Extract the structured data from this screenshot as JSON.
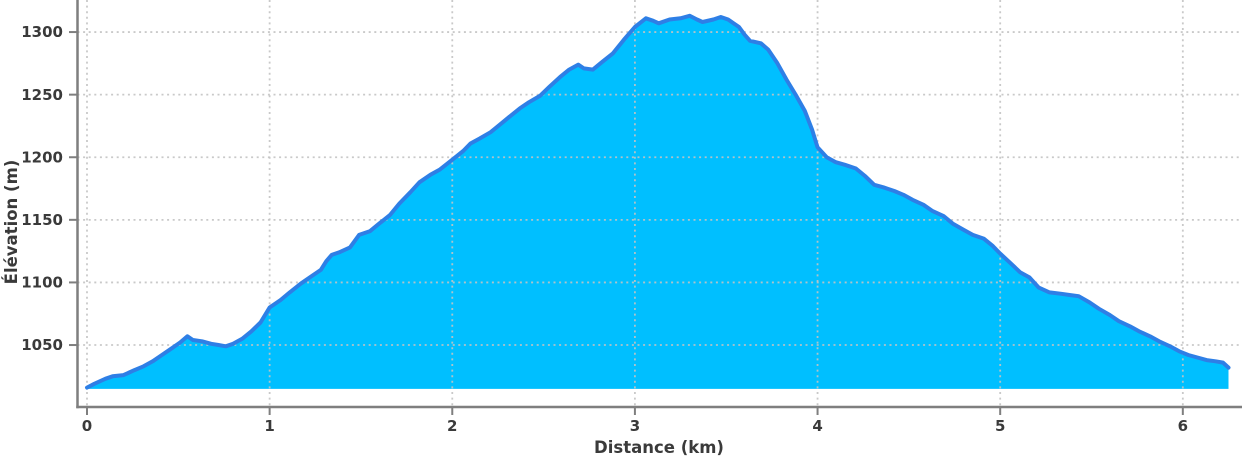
{
  "chart_data": {
    "type": "area",
    "title": "",
    "xlabel": "Distance (km)",
    "ylabel": "Élévation (m)",
    "xlim": [
      -0.052,
      6.324
    ],
    "ylim": [
      1000.5,
      1325.6
    ],
    "xticks": [
      0,
      1,
      2,
      3,
      4,
      5,
      6
    ],
    "yticks": [
      1050,
      1100,
      1150,
      1200,
      1250,
      1300
    ],
    "grid": "dotted-both-axes",
    "legend": "none",
    "fill_base_elevation": 1015,
    "colors": {
      "fill": "#00BFFF",
      "line": "#2E7FE6",
      "grid": "#c4c4c4",
      "spine": "#7f7f7f",
      "text": "#3a3a3a"
    },
    "series_name": "elevation-profile",
    "points": [
      [
        0.0,
        1016
      ],
      [
        0.04,
        1019
      ],
      [
        0.1,
        1023
      ],
      [
        0.14,
        1025
      ],
      [
        0.2,
        1026
      ],
      [
        0.26,
        1030
      ],
      [
        0.31,
        1033
      ],
      [
        0.36,
        1037
      ],
      [
        0.41,
        1042
      ],
      [
        0.46,
        1047
      ],
      [
        0.51,
        1052
      ],
      [
        0.55,
        1057
      ],
      [
        0.58,
        1054
      ],
      [
        0.63,
        1053
      ],
      [
        0.68,
        1051
      ],
      [
        0.72,
        1050
      ],
      [
        0.76,
        1049
      ],
      [
        0.8,
        1051
      ],
      [
        0.85,
        1055
      ],
      [
        0.9,
        1061
      ],
      [
        0.95,
        1068
      ],
      [
        1.0,
        1080
      ],
      [
        1.06,
        1086
      ],
      [
        1.11,
        1092
      ],
      [
        1.17,
        1099
      ],
      [
        1.22,
        1104
      ],
      [
        1.28,
        1110
      ],
      [
        1.31,
        1117
      ],
      [
        1.34,
        1122
      ],
      [
        1.38,
        1124
      ],
      [
        1.44,
        1128
      ],
      [
        1.49,
        1138
      ],
      [
        1.55,
        1141
      ],
      [
        1.6,
        1147
      ],
      [
        1.66,
        1154
      ],
      [
        1.71,
        1163
      ],
      [
        1.77,
        1172
      ],
      [
        1.82,
        1180
      ],
      [
        1.88,
        1186
      ],
      [
        1.93,
        1190
      ],
      [
        2.0,
        1198
      ],
      [
        2.06,
        1205
      ],
      [
        2.1,
        1211
      ],
      [
        2.15,
        1215
      ],
      [
        2.21,
        1220
      ],
      [
        2.26,
        1226
      ],
      [
        2.31,
        1232
      ],
      [
        2.37,
        1239
      ],
      [
        2.42,
        1244
      ],
      [
        2.48,
        1249
      ],
      [
        2.53,
        1256
      ],
      [
        2.59,
        1264
      ],
      [
        2.64,
        1270
      ],
      [
        2.69,
        1274
      ],
      [
        2.72,
        1271
      ],
      [
        2.77,
        1270
      ],
      [
        2.82,
        1276
      ],
      [
        2.88,
        1283
      ],
      [
        2.94,
        1294
      ],
      [
        3.0,
        1304
      ],
      [
        3.06,
        1311
      ],
      [
        3.1,
        1309
      ],
      [
        3.13,
        1307
      ],
      [
        3.19,
        1310
      ],
      [
        3.25,
        1311
      ],
      [
        3.3,
        1313
      ],
      [
        3.34,
        1310
      ],
      [
        3.37,
        1308
      ],
      [
        3.43,
        1310
      ],
      [
        3.47,
        1312
      ],
      [
        3.51,
        1310
      ],
      [
        3.54,
        1307
      ],
      [
        3.57,
        1304
      ],
      [
        3.6,
        1298
      ],
      [
        3.63,
        1293
      ],
      [
        3.69,
        1291
      ],
      [
        3.73,
        1286
      ],
      [
        3.78,
        1275
      ],
      [
        3.83,
        1262
      ],
      [
        3.88,
        1250
      ],
      [
        3.93,
        1237
      ],
      [
        3.97,
        1222
      ],
      [
        4.0,
        1208
      ],
      [
        4.05,
        1200
      ],
      [
        4.1,
        1196
      ],
      [
        4.15,
        1194
      ],
      [
        4.21,
        1191
      ],
      [
        4.26,
        1185
      ],
      [
        4.31,
        1178
      ],
      [
        4.36,
        1176
      ],
      [
        4.42,
        1173
      ],
      [
        4.47,
        1170
      ],
      [
        4.52,
        1166
      ],
      [
        4.58,
        1162
      ],
      [
        4.63,
        1157
      ],
      [
        4.69,
        1153
      ],
      [
        4.74,
        1147
      ],
      [
        4.8,
        1142
      ],
      [
        4.85,
        1138
      ],
      [
        4.91,
        1135
      ],
      [
        4.96,
        1129
      ],
      [
        5.0,
        1123
      ],
      [
        5.06,
        1115
      ],
      [
        5.11,
        1108
      ],
      [
        5.16,
        1104
      ],
      [
        5.21,
        1096
      ],
      [
        5.27,
        1092
      ],
      [
        5.33,
        1091
      ],
      [
        5.38,
        1090
      ],
      [
        5.43,
        1089
      ],
      [
        5.49,
        1084
      ],
      [
        5.54,
        1079
      ],
      [
        5.6,
        1074
      ],
      [
        5.65,
        1069
      ],
      [
        5.71,
        1065
      ],
      [
        5.76,
        1061
      ],
      [
        5.82,
        1057
      ],
      [
        5.87,
        1053
      ],
      [
        5.93,
        1049
      ],
      [
        5.98,
        1045
      ],
      [
        6.03,
        1042
      ],
      [
        6.08,
        1040
      ],
      [
        6.13,
        1038
      ],
      [
        6.18,
        1037
      ],
      [
        6.22,
        1036
      ],
      [
        6.25,
        1032
      ]
    ]
  }
}
